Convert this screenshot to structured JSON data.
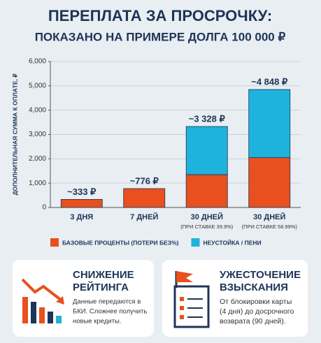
{
  "chart_data": {
    "type": "stacked_bar",
    "title": [
      "ПЕРЕПЛАТА ЗА ПРОСРОЧКУ:",
      "ПОКАЗАНО НА ПРИМЕРЕ ДОЛГА 100 000 ₽"
    ],
    "ylabel": "ДОПОЛНИТЕЛЬНАЯ СУММА К ОПЛАТЕ, ₽",
    "categories": [
      "3 ДНЯ",
      "7 ДНЕЙ",
      "30 ДНЕЙ",
      "30 ДНЕЙ"
    ],
    "category_notes": [
      null,
      null,
      "(ПРИ СТАВКЕ 39.9%)",
      "(ПРИ СТАВКЕ 58.99%)"
    ],
    "series": [
      {
        "name": "БАЗОВЫЕ ПРОЦЕНТЫ (ПОТЕРИ БЕЗ%)",
        "color": "#e8501e",
        "values": [
          333,
          776,
          1350,
          2050
        ]
      },
      {
        "name": "НЕУСТОЙКА / ПЕНИ",
        "color": "#1db3dc",
        "values": [
          0,
          0,
          1978,
          2798
        ]
      }
    ],
    "totals": {
      "values": [
        333,
        776,
        3328,
        4848
      ],
      "value_labels": [
        "~333 ₽",
        "~776 ₽",
        "~3 328 ₽",
        "~4 848 ₽"
      ]
    },
    "ylim": [
      0,
      6000
    ],
    "yticks": [
      0,
      {
        "value": 1000,
        "label": "1,000"
      },
      {
        "value": 2000,
        "label": "2,000"
      },
      {
        "value": 3000,
        "label": "3,000"
      },
      {
        "value": 4000,
        "label": "4,000"
      },
      {
        "value": 5000,
        "label": "5,000"
      },
      {
        "value": 6000,
        "label": "6,000"
      }
    ],
    "grid": true
  },
  "cards": [
    {
      "title": [
        "СНИЖЕНИЕ",
        "РЕЙТИНГА"
      ],
      "text": [
        "Данные передаются в",
        "БКИ. Сложнее получить",
        "новые кредиты."
      ]
    },
    {
      "title": [
        "УЖЕСТОЧЕНИЕ",
        "ВЗЫСКАНИЯ"
      ],
      "text": [
        "От блокировки карты",
        "(4 дня) до досрочного",
        "возврата (90 дней)."
      ]
    }
  ]
}
